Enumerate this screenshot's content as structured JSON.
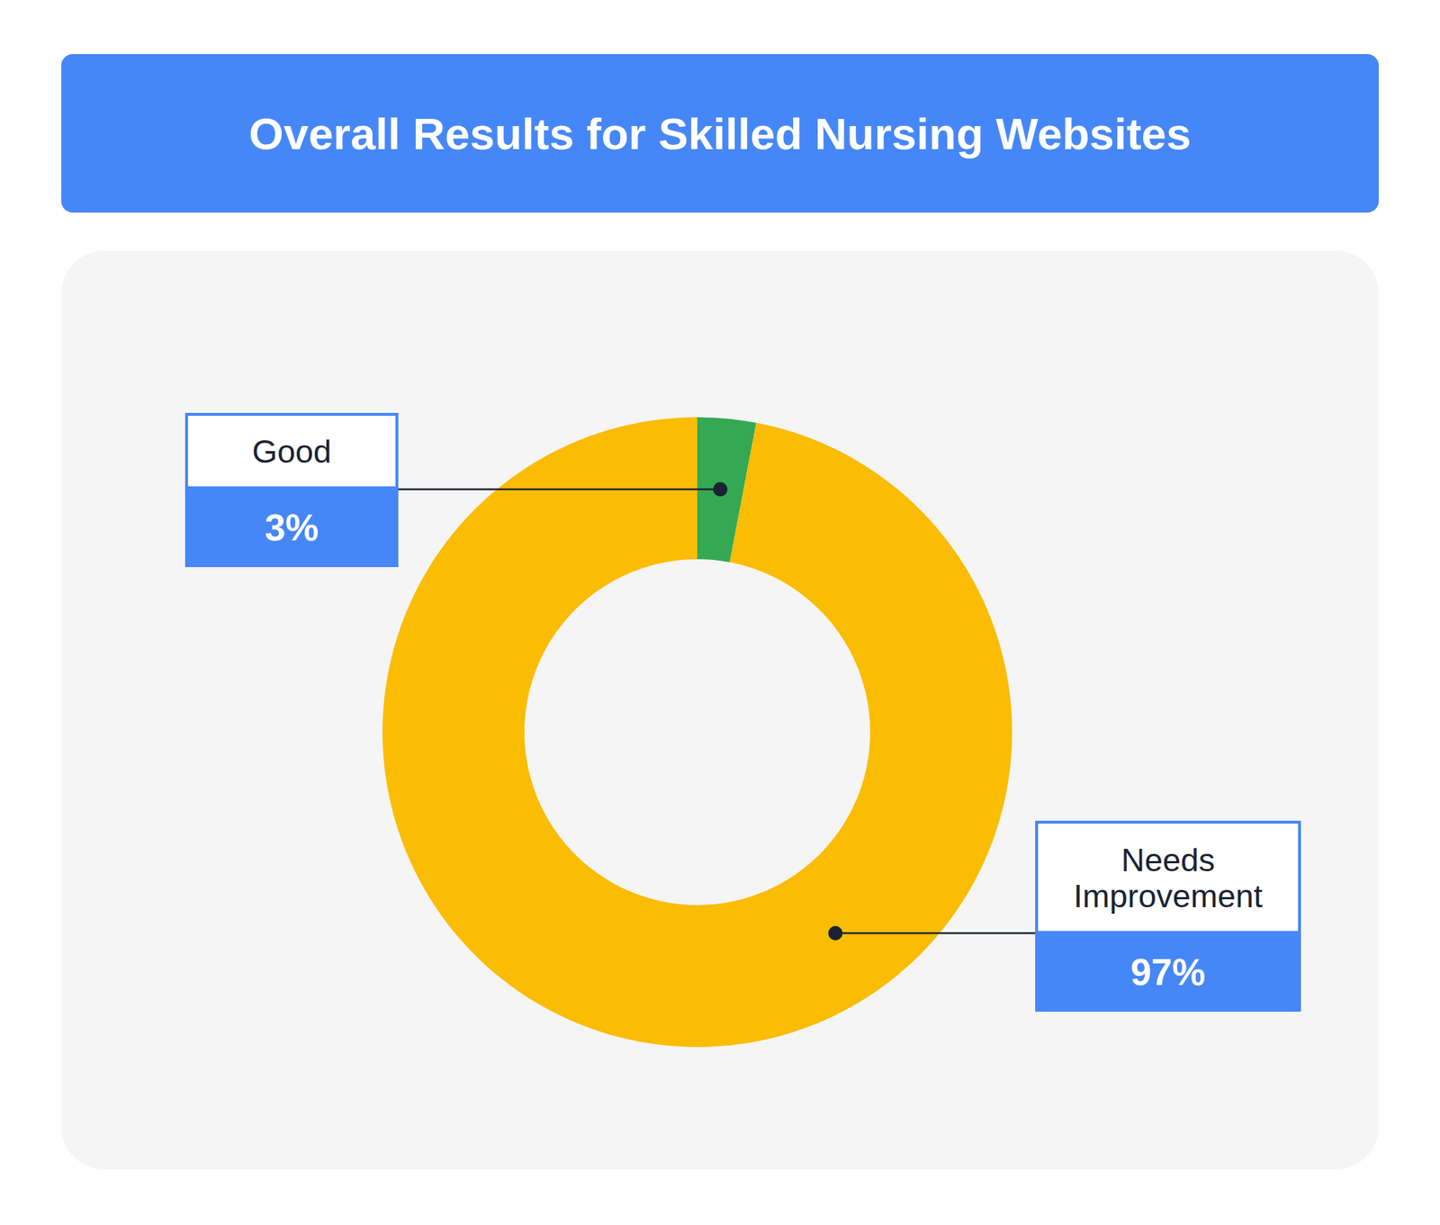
{
  "chart_data": {
    "type": "pie",
    "title": "Overall Results for Skilled Nursing Websites",
    "categories": [
      "Good",
      "Needs Improvement"
    ],
    "values": [
      3,
      97
    ],
    "value_labels": [
      "3%",
      "97%"
    ],
    "colors": [
      "#34a853",
      "#fbbc04"
    ],
    "data_labels": true
  }
}
